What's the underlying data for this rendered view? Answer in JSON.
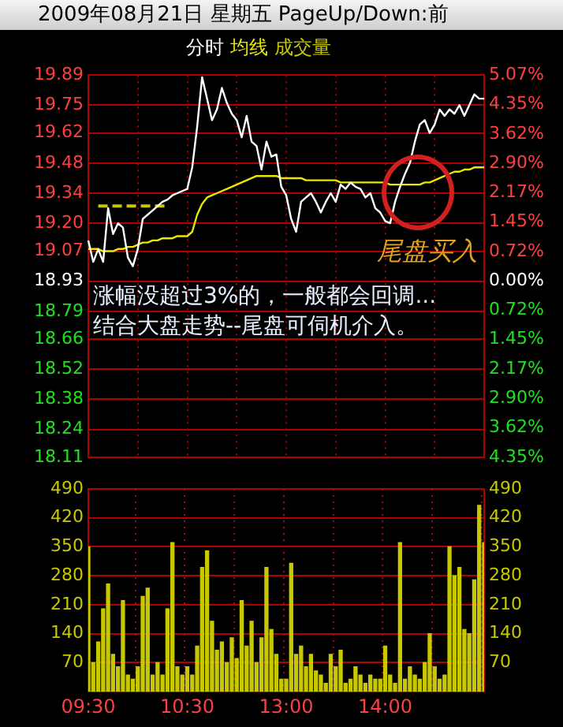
{
  "chart_data": [
    {
      "type": "line",
      "title": "2009年08月21日 星期五 PageUp/Down:前",
      "legend": "top left",
      "grid": true,
      "marker": "none",
      "tick_labels": "y",
      "annotations": [
        "尾盘买入",
        "涨幅没超过3%的，一般都会回调...",
        "结合大盘走势--尾盘可伺机介入。"
      ],
      "categories": [
        null,
        null,
        null,
        null,
        null,
        null,
        null,
        null,
        null,
        null,
        null,
        null,
        null,
        null,
        null,
        null,
        null,
        null,
        null,
        null,
        null,
        null,
        null,
        null,
        null,
        null,
        null,
        null,
        null,
        null,
        null,
        null,
        null,
        null,
        null,
        null,
        null,
        null,
        null,
        null,
        null,
        null,
        null,
        null,
        null,
        null,
        null,
        null,
        null,
        null,
        null,
        null,
        null,
        null,
        null,
        null,
        null,
        null,
        null,
        null,
        null,
        null,
        null,
        null,
        null,
        null,
        null,
        null,
        null,
        null,
        null,
        null,
        null,
        null,
        null,
        null,
        null,
        null,
        null,
        null,
        null
      ],
      "ylim": [
        18.11,
        19.89
      ],
      "yticks": [
        19.89,
        19.75,
        19.62,
        19.48,
        19.34,
        {
          "value": 19.2,
          "label": "19.20"
        },
        19.07,
        18.93,
        18.79,
        18.66,
        18.52,
        18.38,
        18.24,
        18.11
      ],
      "y2lim": [
        -4.35,
        5.07
      ],
      "y2ticks": [
        {
          "value": 5.07,
          "label": "5.07%"
        },
        {
          "value": 4.35,
          "label": "4.35%"
        },
        {
          "value": 3.62,
          "label": "3.62%"
        },
        {
          "value": 2.9,
          "label": "2.90%"
        },
        {
          "value": 2.17,
          "label": "2.17%"
        },
        {
          "value": 1.45,
          "label": "1.45%"
        },
        {
          "value": 0.72,
          "label": "0.72%"
        },
        {
          "value": 0,
          "label": "0.00%"
        },
        {
          "value": -0.72,
          "label": "0.72%"
        },
        {
          "value": -1.45,
          "label": "1.45%"
        },
        {
          "value": -2.17,
          "label": "2.17%"
        },
        {
          "value": -2.9,
          "label": "2.90%"
        },
        {
          "value": -3.62,
          "label": "3.62%"
        },
        {
          "value": -4.35,
          "label": "4.35%"
        }
      ],
      "series": [
        {
          "name": "分时",
          "color": "#ffffff",
          "values": [
            19.12,
            19.02,
            19.08,
            19.02,
            19.27,
            19.15,
            19.2,
            19.18,
            19.04,
            19.0,
            19.08,
            19.22,
            19.24,
            19.26,
            19.28,
            19.3,
            19.31,
            19.33,
            19.34,
            19.35,
            19.36,
            19.46,
            19.65,
            19.88,
            19.78,
            19.68,
            19.73,
            19.83,
            19.76,
            19.71,
            19.68,
            19.6,
            19.7,
            19.58,
            19.56,
            19.45,
            19.58,
            19.51,
            19.52,
            19.37,
            19.33,
            19.22,
            19.16,
            19.3,
            19.32,
            19.34,
            19.3,
            19.25,
            19.3,
            19.34,
            19.3,
            19.38,
            19.36,
            19.39,
            19.37,
            19.36,
            19.32,
            19.34,
            19.27,
            19.25,
            19.21,
            19.2,
            19.3,
            19.37,
            19.43,
            19.48,
            19.58,
            19.66,
            19.68,
            19.62,
            19.66,
            19.73,
            19.7,
            19.73,
            19.71,
            19.75,
            19.7,
            19.75,
            19.8,
            19.78,
            19.78
          ]
        },
        {
          "name": "均线",
          "color": "#e8e800",
          "values": [
            19.08,
            19.08,
            19.08,
            19.07,
            19.07,
            19.07,
            19.08,
            19.08,
            19.09,
            19.09,
            19.1,
            19.11,
            19.11,
            19.12,
            19.12,
            19.13,
            19.13,
            19.13,
            19.14,
            19.14,
            19.14,
            19.16,
            19.24,
            19.29,
            19.32,
            19.33,
            19.34,
            19.35,
            19.36,
            19.37,
            19.38,
            19.39,
            19.4,
            19.41,
            19.42,
            19.42,
            19.42,
            19.42,
            19.42,
            19.41,
            19.41,
            19.41,
            19.41,
            19.41,
            19.4,
            19.4,
            19.4,
            19.4,
            19.4,
            19.4,
            19.4,
            19.39,
            19.39,
            19.39,
            19.39,
            19.39,
            19.39,
            19.39,
            19.39,
            19.39,
            19.39,
            19.38,
            19.38,
            19.38,
            19.38,
            19.38,
            19.38,
            19.38,
            19.39,
            19.39,
            19.4,
            19.41,
            19.42,
            19.43,
            19.44,
            19.44,
            19.45,
            19.45,
            19.46,
            19.46,
            19.46
          ]
        },
        {
          "color": "#c8c800",
          "line_style": "dashed",
          "values": [
            null,
            null,
            19.28,
            19.28,
            19.28,
            19.28,
            19.28,
            19.28,
            19.28,
            19.28,
            19.28,
            19.28,
            19.28,
            19.28,
            19.28,
            19.28,
            19.28,
            null,
            null,
            null,
            null,
            null,
            null,
            null,
            null,
            null,
            null,
            null,
            null,
            null,
            null,
            null,
            null,
            null,
            null,
            null,
            null,
            null,
            null,
            null,
            null,
            null,
            null,
            null,
            null,
            null,
            null,
            null,
            null,
            null,
            null,
            null,
            null,
            null,
            null,
            null,
            null,
            null,
            null,
            null,
            null,
            null,
            null,
            null,
            null,
            null,
            null,
            null,
            null,
            null,
            null,
            null,
            null,
            null,
            null,
            null,
            null,
            null,
            null,
            null,
            null
          ]
        }
      ]
    },
    {
      "type": "bar",
      "legend": "top left",
      "grid": true,
      "categories": [
        "09:30",
        null,
        null,
        null,
        null,
        null,
        null,
        null,
        null,
        null,
        null,
        null,
        null,
        null,
        null,
        null,
        null,
        null,
        null,
        null,
        "10:30",
        null,
        null,
        null,
        null,
        null,
        null,
        null,
        null,
        null,
        null,
        null,
        null,
        null,
        null,
        null,
        null,
        null,
        null,
        null,
        "13:00",
        null,
        null,
        null,
        null,
        null,
        null,
        null,
        null,
        null,
        null,
        null,
        null,
        null,
        null,
        null,
        null,
        null,
        null,
        null,
        "14:00",
        null,
        null,
        null,
        null,
        null,
        null,
        null,
        null,
        null,
        null,
        null,
        null,
        null,
        null,
        null,
        null,
        null,
        null,
        null,
        null
      ],
      "ylim": [
        0,
        490
      ],
      "yticks": [
        70,
        140,
        210,
        280,
        350,
        420,
        490
      ],
      "y2lim": [
        0,
        490
      ],
      "y2ticks": [
        70,
        140,
        210,
        280,
        350,
        420,
        490
      ],
      "series": [
        {
          "name": "成交量",
          "color": "#c8c800",
          "values": [
            350,
            70,
            120,
            200,
            260,
            90,
            60,
            220,
            40,
            30,
            60,
            230,
            250,
            40,
            70,
            40,
            200,
            360,
            60,
            40,
            60,
            40,
            110,
            300,
            340,
            170,
            100,
            120,
            70,
            130,
            80,
            220,
            110,
            170,
            70,
            130,
            300,
            150,
            90,
            30,
            30,
            310,
            90,
            110,
            60,
            90,
            50,
            40,
            20,
            90,
            60,
            100,
            20,
            30,
            60,
            40,
            20,
            40,
            30,
            30,
            110,
            40,
            20,
            360,
            30,
            60,
            40,
            30,
            70,
            140,
            60,
            30,
            40,
            350,
            280,
            300,
            150,
            140,
            270,
            450,
            360
          ]
        }
      ]
    }
  ]
}
